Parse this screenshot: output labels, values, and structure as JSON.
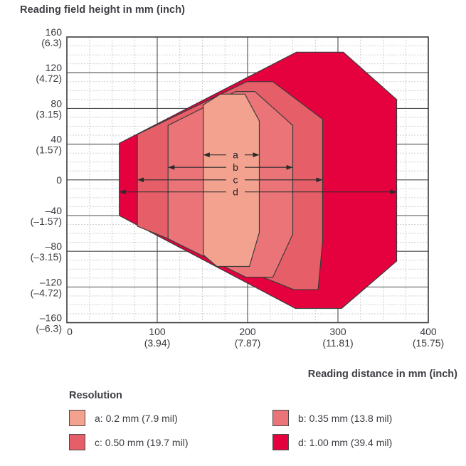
{
  "title": "Reading field height in mm (inch)",
  "x_axis_title": "Reading distance in mm (inch)",
  "legend": {
    "heading": "Resolution",
    "items": [
      {
        "key": "a",
        "label": "a: 0.2 mm (7.9 mil)",
        "color": "#F2A28F"
      },
      {
        "key": "b",
        "label": "b: 0.35 mm (13.8 mil)",
        "color": "#EB7478"
      },
      {
        "key": "c",
        "label": "c: 0.50 mm (19.7 mil)",
        "color": "#E65F68"
      },
      {
        "key": "d",
        "label": "d: 1.00 mm (39.4 mil)",
        "color": "#E4013E"
      }
    ]
  },
  "chart_data": {
    "type": "area",
    "title": "Reading field height in mm (inch)",
    "xlabel": "Reading distance in mm (inch)",
    "ylabel": "Reading field height in mm (inch)",
    "xlim": [
      0,
      400
    ],
    "ylim": [
      -160,
      160
    ],
    "grid": {
      "x_minor_mm": 25,
      "x_major_mm": 100,
      "y_minor_mm": 10,
      "y_major_mm": 40,
      "minor_color": "#c9c9c9",
      "major_color": "#4e4e4e",
      "border_color": "#3b3b3b"
    },
    "x_ticks": [
      {
        "x": 0,
        "mm": "0",
        "inch": ""
      },
      {
        "x": 100,
        "mm": "100",
        "inch": "(3.94)"
      },
      {
        "x": 200,
        "mm": "200",
        "inch": "(7.87)"
      },
      {
        "x": 300,
        "mm": "300",
        "inch": "(11.81)"
      },
      {
        "x": 400,
        "mm": "400",
        "inch": "(15.75)"
      }
    ],
    "y_ticks": [
      {
        "y": 160,
        "mm": "160",
        "inch": "(6.3)"
      },
      {
        "y": 120,
        "mm": "120",
        "inch": "(4.72)"
      },
      {
        "y": 80,
        "mm": "80",
        "inch": "(3.15)"
      },
      {
        "y": 40,
        "mm": "40",
        "inch": "(1.57)"
      },
      {
        "y": 0,
        "mm": "0",
        "inch": ""
      },
      {
        "y": -40,
        "mm": "–40",
        "inch": "(–1.57)"
      },
      {
        "y": -80,
        "mm": "–80",
        "inch": "(–3.15)"
      },
      {
        "y": -120,
        "mm": "–120",
        "inch": "(–4.72)"
      },
      {
        "y": -160,
        "mm": "–160",
        "inch": "(–6.3)"
      }
    ],
    "series": [
      {
        "name": "d",
        "resolution": "1.00 mm (39.4 mil)",
        "color": "#E4013E",
        "polygon_mm": [
          [
            58,
            41
          ],
          [
            254,
            143
          ],
          [
            306,
            143
          ],
          [
            365,
            90
          ],
          [
            365,
            -91
          ],
          [
            304,
            -144
          ],
          [
            253,
            -144
          ],
          [
            58,
            -40
          ]
        ]
      },
      {
        "name": "c",
        "resolution": "0.50 mm (19.7 mil)",
        "color": "#E65F68",
        "polygon_mm": [
          [
            78,
            51
          ],
          [
            199,
            110
          ],
          [
            228,
            110
          ],
          [
            283,
            68
          ],
          [
            283,
            -69
          ],
          [
            278,
            -123
          ],
          [
            251,
            -123
          ],
          [
            78,
            -52
          ]
        ]
      },
      {
        "name": "b",
        "resolution": "0.35 mm (13.8 mil)",
        "color": "#EB7478",
        "polygon_mm": [
          [
            112,
            61
          ],
          [
            187,
            99
          ],
          [
            208,
            99
          ],
          [
            250,
            61
          ],
          [
            250,
            -61
          ],
          [
            228,
            -109
          ],
          [
            198,
            -109
          ],
          [
            112,
            -66
          ]
        ]
      },
      {
        "name": "a",
        "resolution": "0.2 mm (7.9 mil)",
        "color": "#F2A28F",
        "polygon_mm": [
          [
            151,
            84
          ],
          [
            170,
            96
          ],
          [
            197,
            96
          ],
          [
            213,
            66
          ],
          [
            213,
            -59
          ],
          [
            202,
            -97
          ],
          [
            166,
            -97
          ],
          [
            151,
            -84
          ]
        ]
      }
    ],
    "range_arrows": [
      {
        "label": "a",
        "y_mm": 28,
        "x1_mm": 151,
        "x2_mm": 213
      },
      {
        "label": "b",
        "y_mm": 14,
        "x1_mm": 112,
        "x2_mm": 250
      },
      {
        "label": "c",
        "y_mm": 0,
        "x1_mm": 78,
        "x2_mm": 283
      },
      {
        "label": "d",
        "y_mm": -13.5,
        "x1_mm": 58,
        "x2_mm": 365
      }
    ]
  }
}
